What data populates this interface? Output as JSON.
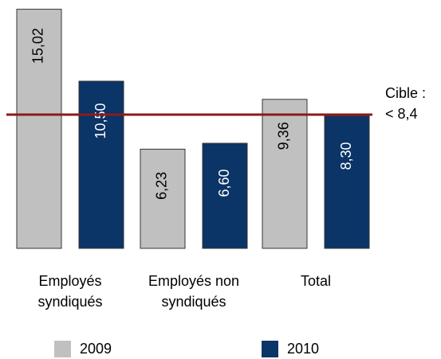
{
  "chart_data": {
    "type": "bar",
    "categories": [
      "Employés\nsyndiqués",
      "Employés non\nsyndiqués",
      "Total"
    ],
    "series": [
      {
        "name": "2009",
        "color": "#c0c0c0",
        "values": [
          15.02,
          6.23,
          9.36
        ],
        "value_labels": [
          "15,02",
          "6,23",
          "9,36"
        ]
      },
      {
        "name": "2010",
        "color": "#0b3467",
        "values": [
          10.5,
          6.6,
          8.3
        ],
        "value_labels": [
          "10,50",
          "6,60",
          "8,30"
        ]
      }
    ],
    "target": {
      "value": 8.4,
      "label": "Cible :\n< 8,4",
      "color": "#8b1a1a"
    },
    "ylim": [
      0,
      15.6
    ]
  }
}
